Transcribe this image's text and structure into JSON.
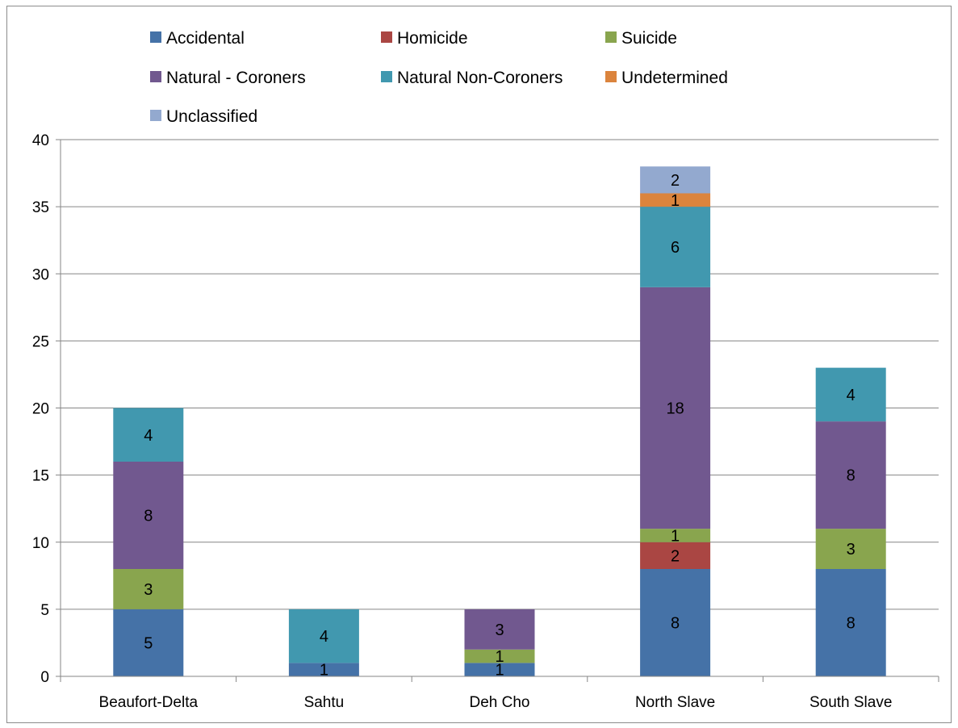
{
  "chart_data": {
    "type": "bar",
    "stacked": true,
    "title": "",
    "xlabel": "",
    "ylabel": "",
    "ylim": [
      0,
      40
    ],
    "yticks": [
      0,
      5,
      10,
      15,
      20,
      25,
      30,
      35,
      40
    ],
    "grid": true,
    "legend_position": "top",
    "categories": [
      "Beaufort-Delta",
      "Sahtu",
      "Deh Cho",
      "North Slave",
      "South Slave"
    ],
    "series": [
      {
        "name": "Accidental",
        "color": "#4572A7",
        "values": [
          5,
          1,
          1,
          8,
          8
        ]
      },
      {
        "name": "Homicide",
        "color": "#AA4643",
        "values": [
          0,
          0,
          0,
          2,
          0
        ]
      },
      {
        "name": "Suicide",
        "color": "#89A54E",
        "values": [
          3,
          0,
          1,
          1,
          3
        ]
      },
      {
        "name": "Natural  - Coroners",
        "color": "#71588F",
        "values": [
          8,
          0,
          3,
          18,
          8
        ]
      },
      {
        "name": "Natural Non-Coroners",
        "color": "#4198AF",
        "values": [
          4,
          4,
          0,
          6,
          4
        ]
      },
      {
        "name": "Undetermined",
        "color": "#DB843D",
        "values": [
          0,
          0,
          0,
          1,
          0
        ]
      },
      {
        "name": "Unclassified",
        "color": "#93A9CF",
        "values": [
          0,
          0,
          0,
          2,
          0
        ]
      }
    ]
  }
}
